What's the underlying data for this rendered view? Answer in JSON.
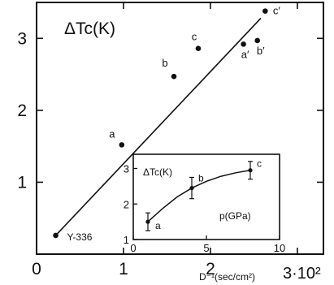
{
  "chart_data": [
    {
      "type": "scatter",
      "title": "ΔTc(K)",
      "xlabel": "D⁻¹(sec/cm²)",
      "x_multiplier_label": "3·10²",
      "xlim": [
        0,
        3.3
      ],
      "ylim": [
        0,
        3.5
      ],
      "x_ticks": [
        0,
        1,
        2,
        3
      ],
      "x_tick_labels": [
        "0",
        "1",
        "2",
        ""
      ],
      "y_ticks": [
        1,
        2,
        3
      ],
      "y_tick_labels": [
        "1",
        "2",
        "3"
      ],
      "grid": false,
      "points": [
        {
          "label": "Y-336",
          "x": 0.22,
          "y": 0.26
        },
        {
          "label": "a",
          "x": 0.98,
          "y": 1.52
        },
        {
          "label": "b",
          "x": 1.58,
          "y": 2.47
        },
        {
          "label": "c",
          "x": 1.86,
          "y": 2.86
        },
        {
          "label": "a′",
          "x": 2.38,
          "y": 2.92
        },
        {
          "label": "b′",
          "x": 2.54,
          "y": 2.97
        },
        {
          "label": "c′",
          "x": 2.63,
          "y": 3.38
        }
      ],
      "fit_line": {
        "x": [
          0.22,
          2.58
        ],
        "y": [
          0.26,
          3.28
        ]
      }
    },
    {
      "type": "line",
      "title": "ΔTc(K)",
      "xlabel": "p(GPa)",
      "xlim": [
        0,
        10
      ],
      "ylim": [
        1,
        3.4
      ],
      "x_ticks": [
        0,
        5,
        10
      ],
      "x_tick_labels": [
        "0",
        "5",
        "10"
      ],
      "y_ticks": [
        1,
        2,
        3
      ],
      "y_tick_labels": [
        "1",
        "2",
        "3"
      ],
      "grid": false,
      "points": [
        {
          "label": "a",
          "x": 1.0,
          "y": 1.5,
          "err": 0.25
        },
        {
          "label": "b",
          "x": 4.0,
          "y": 2.45,
          "err": 0.3
        },
        {
          "label": "c",
          "x": 8.0,
          "y": 2.95,
          "err": 0.25
        }
      ],
      "curve": {
        "x": [
          1,
          2,
          3,
          4,
          5,
          6,
          7,
          8
        ],
        "y": [
          1.5,
          1.87,
          2.2,
          2.45,
          2.64,
          2.78,
          2.88,
          2.95
        ]
      }
    }
  ]
}
